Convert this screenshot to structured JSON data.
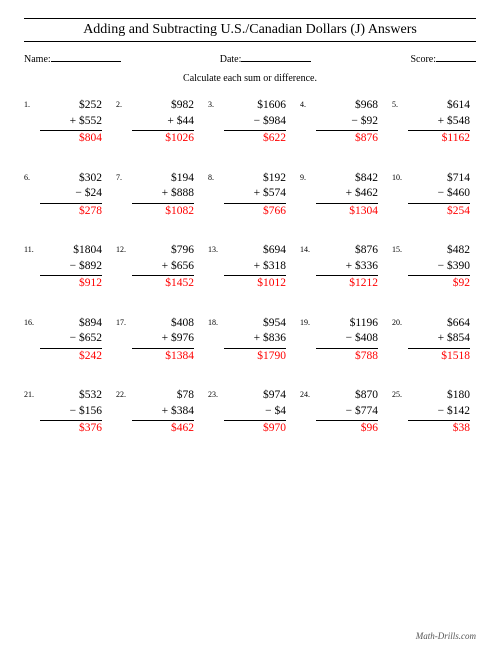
{
  "title": "Adding and Subtracting U.S./Canadian Dollars (J) Answers",
  "labels": {
    "name": "Name:",
    "date": "Date:",
    "score": "Score:"
  },
  "instruction": "Calculate each sum or difference.",
  "footer": "Math-Drills.com",
  "answer_color": "#ff0000",
  "problems": [
    {
      "n": "1.",
      "a": "$252",
      "op": "+",
      "b": "$552",
      "ans": "$804"
    },
    {
      "n": "2.",
      "a": "$982",
      "op": "+",
      "b": "$44",
      "ans": "$1026"
    },
    {
      "n": "3.",
      "a": "$1606",
      "op": "−",
      "b": "$984",
      "ans": "$622"
    },
    {
      "n": "4.",
      "a": "$968",
      "op": "−",
      "b": "$92",
      "ans": "$876"
    },
    {
      "n": "5.",
      "a": "$614",
      "op": "+",
      "b": "$548",
      "ans": "$1162"
    },
    {
      "n": "6.",
      "a": "$302",
      "op": "−",
      "b": "$24",
      "ans": "$278"
    },
    {
      "n": "7.",
      "a": "$194",
      "op": "+",
      "b": "$888",
      "ans": "$1082"
    },
    {
      "n": "8.",
      "a": "$192",
      "op": "+",
      "b": "$574",
      "ans": "$766"
    },
    {
      "n": "9.",
      "a": "$842",
      "op": "+",
      "b": "$462",
      "ans": "$1304"
    },
    {
      "n": "10.",
      "a": "$714",
      "op": "−",
      "b": "$460",
      "ans": "$254"
    },
    {
      "n": "11.",
      "a": "$1804",
      "op": "−",
      "b": "$892",
      "ans": "$912"
    },
    {
      "n": "12.",
      "a": "$796",
      "op": "+",
      "b": "$656",
      "ans": "$1452"
    },
    {
      "n": "13.",
      "a": "$694",
      "op": "+",
      "b": "$318",
      "ans": "$1012"
    },
    {
      "n": "14.",
      "a": "$876",
      "op": "+",
      "b": "$336",
      "ans": "$1212"
    },
    {
      "n": "15.",
      "a": "$482",
      "op": "−",
      "b": "$390",
      "ans": "$92"
    },
    {
      "n": "16.",
      "a": "$894",
      "op": "−",
      "b": "$652",
      "ans": "$242"
    },
    {
      "n": "17.",
      "a": "$408",
      "op": "+",
      "b": "$976",
      "ans": "$1384"
    },
    {
      "n": "18.",
      "a": "$954",
      "op": "+",
      "b": "$836",
      "ans": "$1790"
    },
    {
      "n": "19.",
      "a": "$1196",
      "op": "−",
      "b": "$408",
      "ans": "$788"
    },
    {
      "n": "20.",
      "a": "$664",
      "op": "+",
      "b": "$854",
      "ans": "$1518"
    },
    {
      "n": "21.",
      "a": "$532",
      "op": "−",
      "b": "$156",
      "ans": "$376"
    },
    {
      "n": "22.",
      "a": "$78",
      "op": "+",
      "b": "$384",
      "ans": "$462"
    },
    {
      "n": "23.",
      "a": "$974",
      "op": "−",
      "b": "$4",
      "ans": "$970"
    },
    {
      "n": "24.",
      "a": "$870",
      "op": "−",
      "b": "$774",
      "ans": "$96"
    },
    {
      "n": "25.",
      "a": "$180",
      "op": "−",
      "b": "$142",
      "ans": "$38"
    }
  ]
}
